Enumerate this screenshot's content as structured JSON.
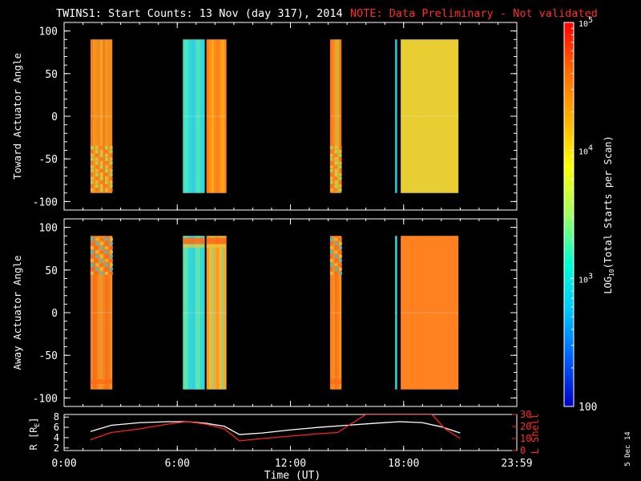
{
  "title": {
    "main": "TWINS1: Start Counts: 13 Nov (day 317), 2014",
    "note": "NOTE: Data Preliminary - Not validated"
  },
  "stamp": "5 Dec 14",
  "colors": {
    "background": "#000000",
    "frame": "#ffffff",
    "note_red": "#ff2a2a",
    "r_line": "#ffffff",
    "lshell_line": "#ff2020"
  },
  "chart_data": [
    {
      "type": "heatmap",
      "name": "toward",
      "ylabel": "Toward Actuator Angle",
      "ylim": [
        -110,
        110
      ],
      "yticks": [
        "100",
        "50",
        "0",
        "-50",
        "-100"
      ],
      "ytick_values": [
        100,
        50,
        0,
        -50,
        -100
      ],
      "xlim_hours": [
        0,
        24
      ],
      "value_scale": "log10",
      "blocks": [
        {
          "start_h": 1.4,
          "end_h": 2.55,
          "fill": "#f07a1c",
          "stripes": [
            "#ff7d10",
            "#f59822",
            "#f0b020",
            "#e8c832",
            "#f5a020"
          ],
          "pattern": "low-diag"
        },
        {
          "start_h": 6.3,
          "end_h": 7.45,
          "fill": "#30d8d8",
          "stripes": [
            "#2ee0e0",
            "#50e8c0",
            "#3ad2d8",
            "#70f0a0",
            "#30c8e8"
          ],
          "pattern": "none"
        },
        {
          "start_h": 7.55,
          "end_h": 8.6,
          "fill": "#ff8a18",
          "stripes": [
            "#ffc020",
            "#ff9a18",
            "#ff7818",
            "#ff8a28"
          ],
          "pattern": "none"
        },
        {
          "start_h": 14.1,
          "end_h": 14.7,
          "fill": "#f57c18",
          "stripes": [
            "#a8e848",
            "#e8c030",
            "#ff8a20",
            "#ff7020"
          ],
          "pattern": "low-diag"
        },
        {
          "start_h": 17.55,
          "end_h": 17.65,
          "fill": "#20c8e0",
          "stripes": [
            "#20c8e0"
          ],
          "pattern": "none"
        },
        {
          "start_h": 17.85,
          "end_h": 20.9,
          "fill": "#c8e040",
          "stripes": [
            "#40e0d0",
            "#60e8b8",
            "#90f090",
            "#b8f070",
            "#e8d840",
            "#ffc028",
            "#ffa820"
          ],
          "pattern": "none"
        }
      ]
    },
    {
      "type": "heatmap",
      "name": "away",
      "ylabel": "Away Actuator Angle",
      "ylim": [
        -110,
        110
      ],
      "yticks": [
        "100",
        "50",
        "0",
        "-50",
        "-100"
      ],
      "ytick_values": [
        100,
        50,
        0,
        -50,
        -100
      ],
      "xlim_hours": [
        0,
        24
      ],
      "value_scale": "log10",
      "blocks": [
        {
          "start_h": 1.4,
          "end_h": 2.55,
          "fill": "#f07a1c",
          "stripes": [
            "#ff8a20",
            "#f5a028",
            "#f07020",
            "#e8b030",
            "#ff7818"
          ],
          "pattern": "top-mess"
        },
        {
          "start_h": 6.3,
          "end_h": 7.45,
          "fill": "#30d8d8",
          "stripes": [
            "#30e0d8",
            "#70f0a0",
            "#40d0e0",
            "#90f080",
            "#30c8e8"
          ],
          "pattern": "top-band"
        },
        {
          "start_h": 7.55,
          "end_h": 8.6,
          "fill": "#f8a028",
          "stripes": [
            "#70e8b0",
            "#e0d840",
            "#ff9020",
            "#ffb020"
          ],
          "pattern": "top-band"
        },
        {
          "start_h": 14.1,
          "end_h": 14.7,
          "fill": "#f57c18",
          "stripes": [
            "#ff8020",
            "#f0a028",
            "#ff7018"
          ],
          "pattern": "top-mess"
        },
        {
          "start_h": 17.55,
          "end_h": 17.65,
          "fill": "#30d0d8",
          "stripes": [
            "#30d0d8"
          ],
          "pattern": "none"
        },
        {
          "start_h": 17.85,
          "end_h": 20.9,
          "fill": "#ff8a20",
          "stripes": [
            "#a0f080",
            "#d8e040",
            "#ffb020",
            "#ff8a20",
            "#ff6a18",
            "#ff7a20",
            "#ff9a28"
          ],
          "pattern": "none"
        }
      ]
    },
    {
      "type": "line",
      "name": "orbit",
      "xlabel": "Time (UT)",
      "xticks": [
        "0:00",
        "6:00",
        "12:00",
        "18:00",
        "23:59"
      ],
      "xtick_hours": [
        0,
        6,
        12,
        18,
        24
      ],
      "left_axis": {
        "label": "R [RE]",
        "label_main": "R [R",
        "label_sub": "E",
        "label_end": "]",
        "ylim": [
          1.5,
          8.5
        ],
        "yticks": [
          "8",
          "6",
          "4",
          "2"
        ],
        "ytick_values": [
          8,
          6,
          4,
          2
        ]
      },
      "right_axis": {
        "label": "L Shell",
        "ylim": [
          0,
          30
        ],
        "yticks": [
          "30",
          "20",
          "10",
          "0"
        ],
        "ytick_values": [
          30,
          20,
          10,
          0
        ]
      },
      "series": [
        {
          "axis": "left",
          "color": "#ffffff",
          "x": [
            1.4,
            2.5,
            4.0,
            5.5,
            6.5,
            7.5,
            8.5,
            9.3,
            10.5,
            12.0,
            13.5,
            15.0,
            16.5,
            17.8,
            19.0,
            20.0,
            21.0
          ],
          "y": [
            5.2,
            6.4,
            6.9,
            7.1,
            7.1,
            6.8,
            6.2,
            4.6,
            4.9,
            5.5,
            6.0,
            6.4,
            6.8,
            7.1,
            6.9,
            6.1,
            4.9
          ]
        },
        {
          "axis": "right",
          "color": "#ff2020",
          "x": [
            1.4,
            2.5,
            4.0,
            5.5,
            6.5,
            7.5,
            8.5,
            9.3,
            10.5,
            12.0,
            13.5,
            14.5,
            15.2,
            16.0,
            19.5,
            20.2,
            21.0
          ],
          "y": [
            9,
            15,
            18,
            22,
            24,
            22,
            18,
            8,
            10,
            12,
            14,
            15,
            22,
            30,
            30,
            18,
            10
          ]
        }
      ]
    },
    {
      "type": "colorbar",
      "name": "colorbar",
      "label_main": "LOG",
      "label_sub": "10",
      "label_end": "(Total Starts per Scan)",
      "scale": "log10",
      "range": [
        100,
        100000
      ],
      "ticks": [
        {
          "value": 100000,
          "base": "10",
          "exp": "5"
        },
        {
          "value": 10000,
          "base": "10",
          "exp": "4"
        },
        {
          "value": 1000,
          "base": "10",
          "exp": "3"
        },
        {
          "value": 100,
          "base": "100",
          "exp": ""
        }
      ],
      "colorstops": [
        "#ff0000",
        "#ff6a00",
        "#ffb000",
        "#ffff00",
        "#a0ff60",
        "#00ffd0",
        "#00c8ff",
        "#0060ff",
        "#0000c0"
      ]
    }
  ]
}
